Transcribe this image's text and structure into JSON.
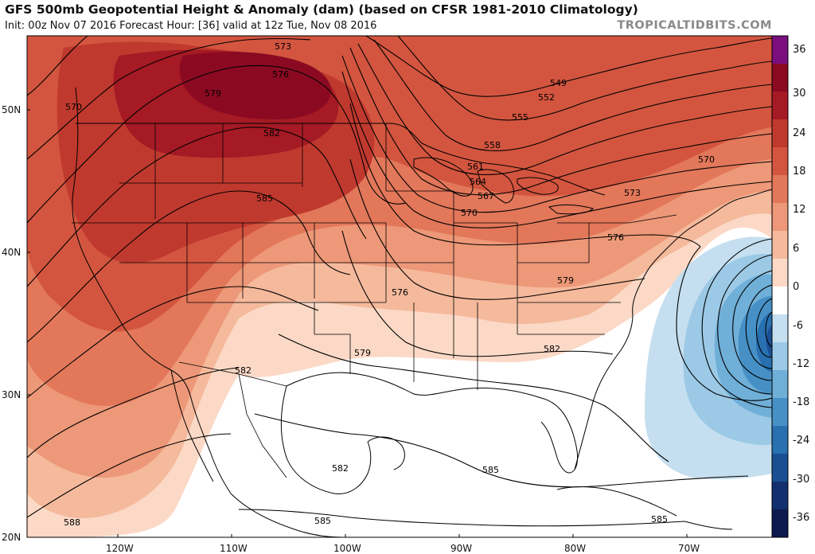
{
  "header": {
    "title": "GFS 500mb Geopotential Height & Anomaly (dam) (based on CFSR 1981-2010 Climatology)",
    "subtitle": "Init: 00z Nov 07 2016   Forecast Hour: [36]   valid at 12z Tue, Nov 08 2016",
    "watermark": "TROPICALTIDBITS.COM"
  },
  "colorbar": {
    "labels": [
      "36",
      "30",
      "24",
      "18",
      "12",
      "6",
      "0",
      "-6",
      "-12",
      "-18",
      "-24",
      "-30",
      "-36"
    ],
    "colors": [
      "#7b0f7e",
      "#8b0a22",
      "#a51a24",
      "#c0392e",
      "#d3553f",
      "#e2775a",
      "#ed9878",
      "#f5b99c",
      "#fbd9c6",
      "#ffffff",
      "#c5dff0",
      "#9cc9e6",
      "#6fafd8",
      "#4690c6",
      "#2870b0",
      "#1b4f93",
      "#132f70",
      "#0b1a4c"
    ]
  },
  "axes": {
    "lat_labels": [
      "50N",
      "40N",
      "30N",
      "20N"
    ],
    "lon_labels": [
      "120W",
      "110W",
      "100W",
      "90W",
      "80W",
      "70W"
    ]
  },
  "contour_labels": [
    {
      "text": "573"
    },
    {
      "text": "576"
    },
    {
      "text": "579"
    },
    {
      "text": "570"
    },
    {
      "text": "582"
    },
    {
      "text": "585"
    },
    {
      "text": "549"
    },
    {
      "text": "552"
    },
    {
      "text": "555"
    },
    {
      "text": "558"
    },
    {
      "text": "561"
    },
    {
      "text": "564"
    },
    {
      "text": "567"
    },
    {
      "text": "570"
    },
    {
      "text": "573"
    },
    {
      "text": "570"
    },
    {
      "text": "576"
    },
    {
      "text": "579"
    },
    {
      "text": "576"
    },
    {
      "text": "579"
    },
    {
      "text": "582"
    },
    {
      "text": "582"
    },
    {
      "text": "582"
    },
    {
      "text": "585"
    },
    {
      "text": "588"
    },
    {
      "text": "585"
    },
    {
      "text": "585"
    }
  ]
}
